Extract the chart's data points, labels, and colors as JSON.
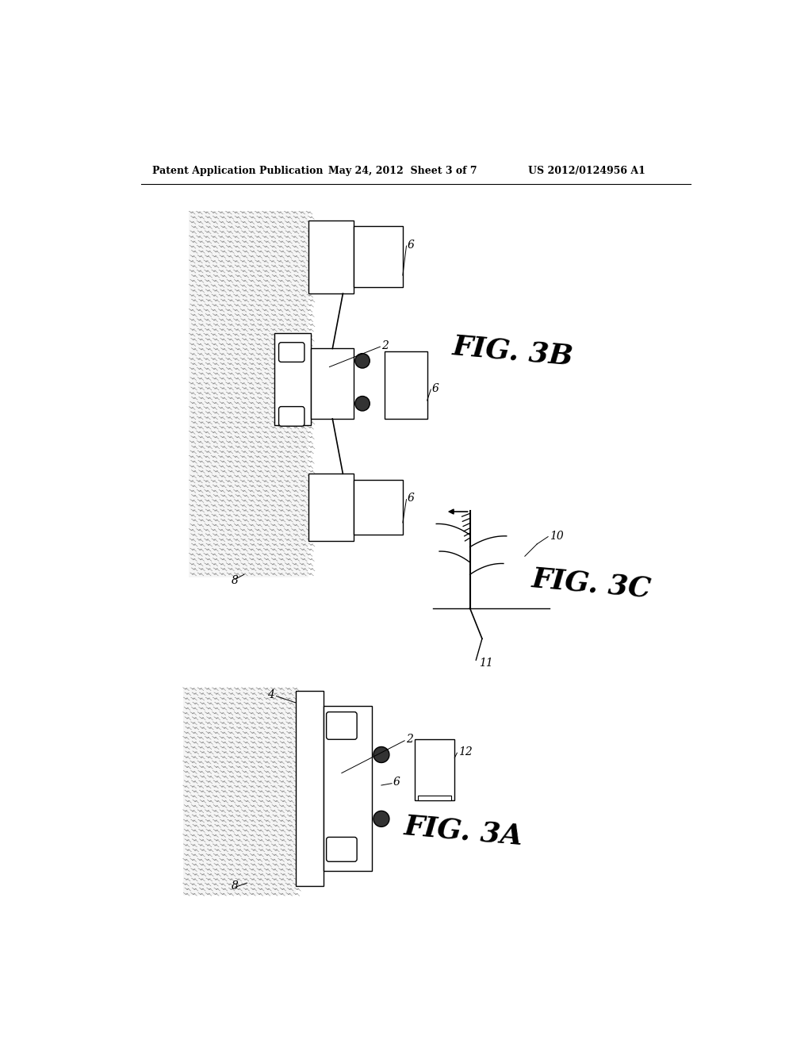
{
  "header_left": "Patent Application Publication",
  "header_center": "May 24, 2012  Sheet 3 of 7",
  "header_right": "US 2012/0124956 A1",
  "background_color": "#ffffff",
  "line_color": "#000000",
  "text_color": "#000000",
  "fig3b_label": "FIG. 3B",
  "fig3c_label": "FIG. 3C",
  "fig3a_label": "FIG. 3A"
}
